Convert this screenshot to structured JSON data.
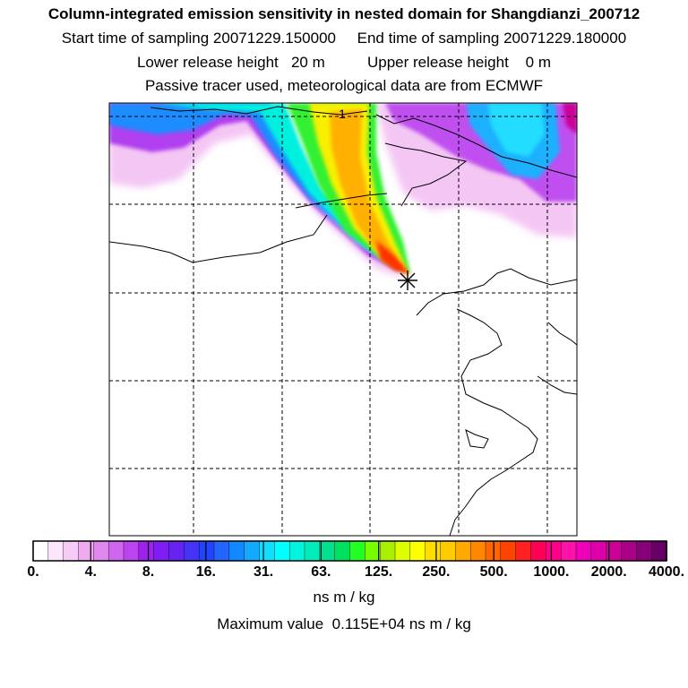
{
  "header": {
    "title": "Column-integrated emission sensitivity in nested domain for Shangdianzi_200712",
    "sampling_line": "Start time of sampling 20071229.150000     End time of sampling 20071229.180000",
    "release_line": "Lower release height   20 m          Upper release height    0 m",
    "tracer_line": "Passive tracer used, meteorological data are from ECMWF"
  },
  "map": {
    "contour_label": "1",
    "station_marker": "Shangdianzi"
  },
  "colorbar": {
    "labels": [
      "0.",
      "4.",
      "8.",
      "16.",
      "31.",
      "63.",
      "125.",
      "250.",
      "500.",
      "1000.",
      "2000.",
      "4000."
    ],
    "colors": [
      "#ffffff",
      "#fbe6fb",
      "#f6ccf6",
      "#f0aaf0",
      "#e088f0",
      "#d066f0",
      "#bb44f0",
      "#a020f0",
      "#7f1ef2",
      "#6622f0",
      "#4433f5",
      "#2244ff",
      "#2266ff",
      "#1188ff",
      "#11aaff",
      "#11ddff",
      "#00ffff",
      "#00f5dd",
      "#00ecbb",
      "#00e090",
      "#00e060",
      "#22ff22",
      "#77ff00",
      "#aaee00",
      "#ddff00",
      "#ffff00",
      "#ffdd00",
      "#ffcc00",
      "#ffaa00",
      "#ff8800",
      "#ff6600",
      "#ff4400",
      "#ff2020",
      "#ff0055",
      "#ff0088",
      "#ff11aa",
      "#ee00bb",
      "#dd00aa",
      "#cc0099",
      "#aa0088",
      "#880077",
      "#660066"
    ],
    "units": "ns m / kg",
    "max_value": "Maximum value  0.115E+04 ns m / kg"
  }
}
